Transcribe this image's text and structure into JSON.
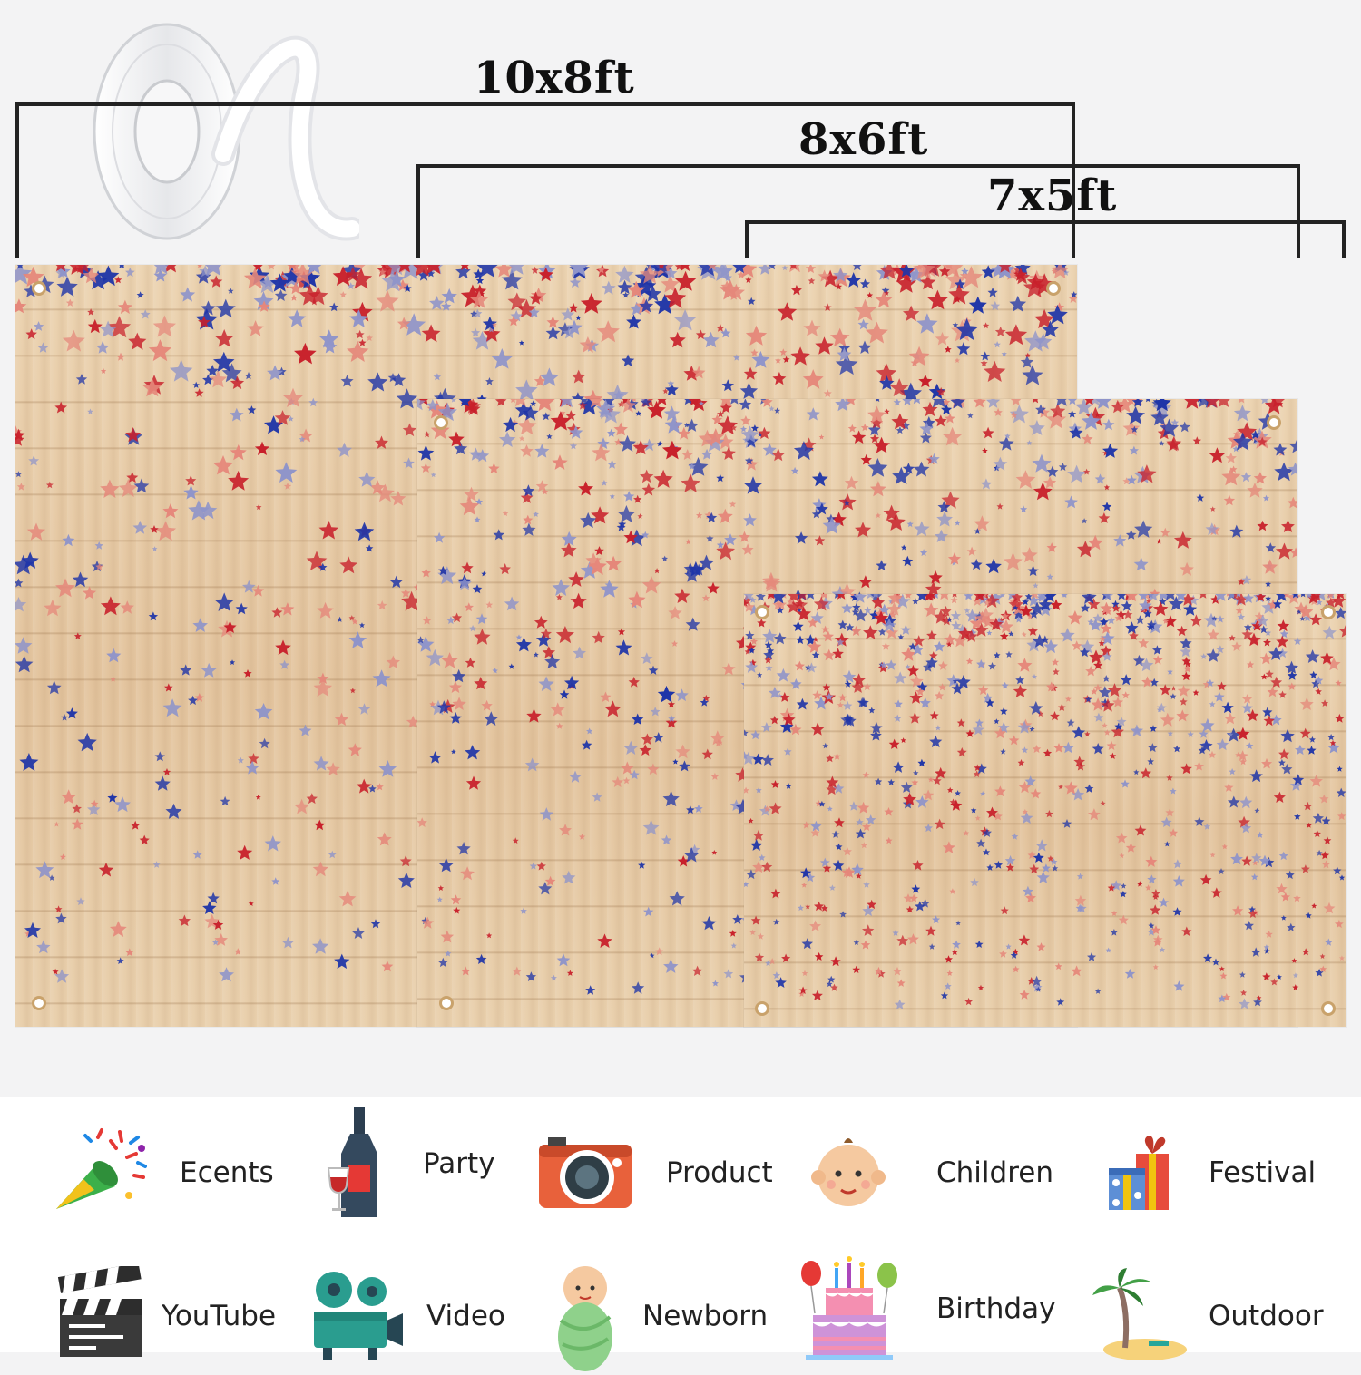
{
  "dimensions": {
    "large": "10x8ft",
    "medium": "8x6ft",
    "small": "7x5ft"
  },
  "product_image": {
    "accessory": "white-satin-ribbon-roll",
    "star_colors": [
      "#c8202b",
      "#1f35a8",
      "#e5877a",
      "#8f94c9"
    ],
    "wood_color": "#e8cda8"
  },
  "uses": {
    "row1": [
      {
        "icon": "party-popper-icon",
        "label": "Ecents"
      },
      {
        "icon": "wine-bottle-icon",
        "label": "Party"
      },
      {
        "icon": "camera-icon",
        "label": "Product"
      },
      {
        "icon": "baby-face-icon",
        "label": "Children"
      },
      {
        "icon": "gift-box-icon",
        "label": "Festival"
      }
    ],
    "row2": [
      {
        "icon": "clapperboard-icon",
        "label": "YouTube"
      },
      {
        "icon": "film-projector-icon",
        "label": "Video"
      },
      {
        "icon": "swaddled-baby-icon",
        "label": "Newborn"
      },
      {
        "icon": "birthday-cake-icon",
        "label": "Birthday"
      },
      {
        "icon": "palm-island-icon",
        "label": "Outdoor"
      }
    ]
  }
}
